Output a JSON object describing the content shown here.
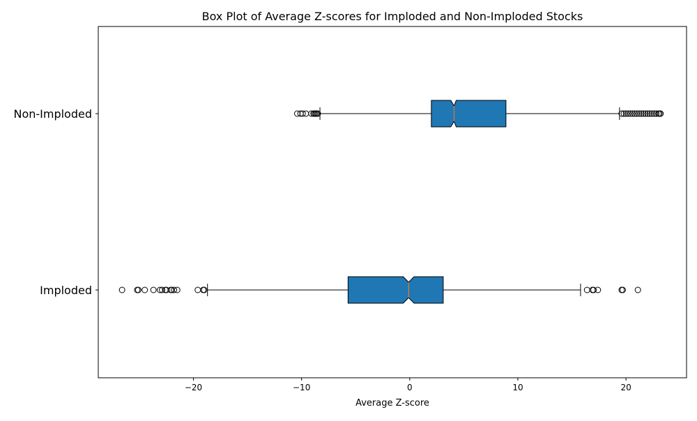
{
  "chart_data": {
    "type": "box",
    "orientation": "horizontal",
    "notched": true,
    "title": "Box Plot of Average Z-scores for Imploded and Non-Imploded Stocks",
    "xlabel": "Average Z-score",
    "ylabel": "",
    "xlim": [
      -28.8,
      25.6
    ],
    "x_ticks": [
      -20,
      -10,
      0,
      10,
      20
    ],
    "x_tick_labels": [
      "−20",
      "−10",
      "0",
      "10",
      "20"
    ],
    "grid": false,
    "legend": "none",
    "colors": {
      "box_fill": "#1f77b4",
      "median": "#ff7f0e",
      "outline": "#000000"
    },
    "categories": [
      "Imploded",
      "Non-Imploded"
    ],
    "series": [
      {
        "category": "Imploded",
        "whisker_low": -18.7,
        "q1": -5.7,
        "median": -0.1,
        "q3": 3.1,
        "whisker_high": 15.8,
        "notch_low": -0.6,
        "notch_high": 0.4,
        "outliers": [
          -26.6,
          -25.2,
          -25.1,
          -24.5,
          -23.7,
          -23.1,
          -22.9,
          -22.6,
          -22.5,
          -22.1,
          -22.0,
          -21.8,
          -21.5,
          -19.6,
          -19.1,
          -19.0,
          16.4,
          16.9,
          17.0,
          17.4,
          19.6,
          19.7,
          21.1
        ]
      },
      {
        "category": "Non-Imploded",
        "whisker_low": -8.3,
        "q1": 2.0,
        "median": 4.1,
        "q3": 8.9,
        "whisker_high": 19.4,
        "notch_low": 3.8,
        "notch_high": 4.3,
        "outliers": [
          -10.4,
          -10.1,
          -9.9,
          -9.6,
          -9.1,
          -8.9,
          -8.8,
          -8.7,
          -8.6,
          -8.5,
          19.6,
          19.8,
          20.0,
          20.2,
          20.4,
          20.6,
          20.8,
          21.0,
          21.2,
          21.4,
          21.6,
          21.8,
          22.0,
          22.2,
          22.4,
          22.6,
          22.8,
          23.0,
          23.1,
          23.2
        ]
      }
    ]
  }
}
